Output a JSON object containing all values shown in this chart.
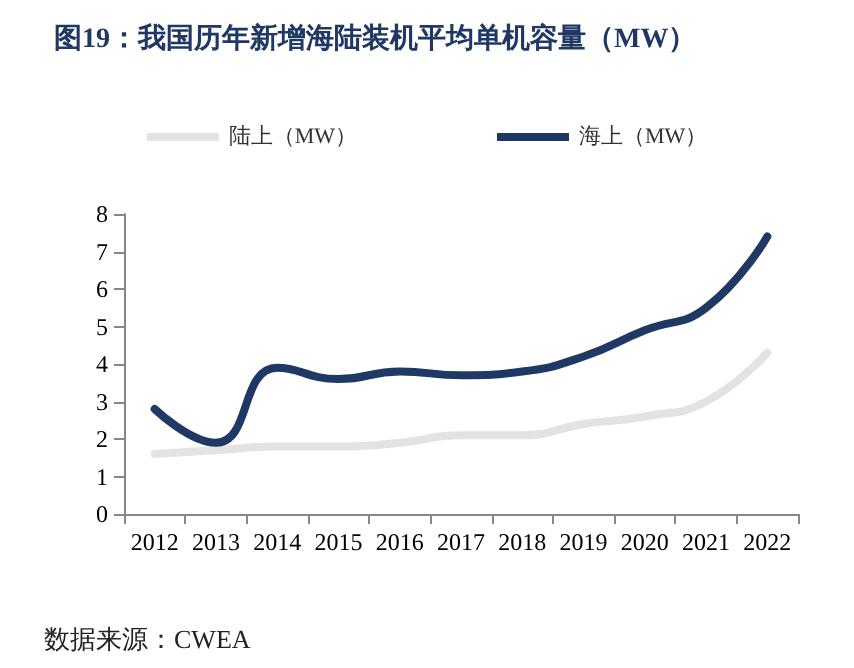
{
  "chart_data": {
    "type": "line",
    "title": "图19：我国历年新增海陆装机平均单机容量（MW）",
    "categories": [
      "2012",
      "2013",
      "2014",
      "2015",
      "2016",
      "2017",
      "2018",
      "2019",
      "2020",
      "2021",
      "2022"
    ],
    "series": [
      {
        "name": "陆上（MW）",
        "color": "#e3e3e3",
        "values": [
          1.6,
          1.7,
          1.8,
          1.8,
          1.9,
          2.1,
          2.1,
          2.4,
          2.6,
          3.0,
          4.3
        ]
      },
      {
        "name": "海上（MW）",
        "color": "#1f3864",
        "values": [
          2.8,
          1.9,
          3.9,
          3.6,
          3.8,
          3.7,
          3.8,
          4.2,
          4.9,
          5.5,
          7.4
        ]
      }
    ],
    "ylim": [
      0,
      8
    ],
    "yticks": [
      0,
      1,
      2,
      3,
      4,
      5,
      6,
      7,
      8
    ],
    "grid": false,
    "legend": "top",
    "marker": "none",
    "line_style": "solid",
    "annotations": [
      "数据来源：CWEA"
    ]
  }
}
